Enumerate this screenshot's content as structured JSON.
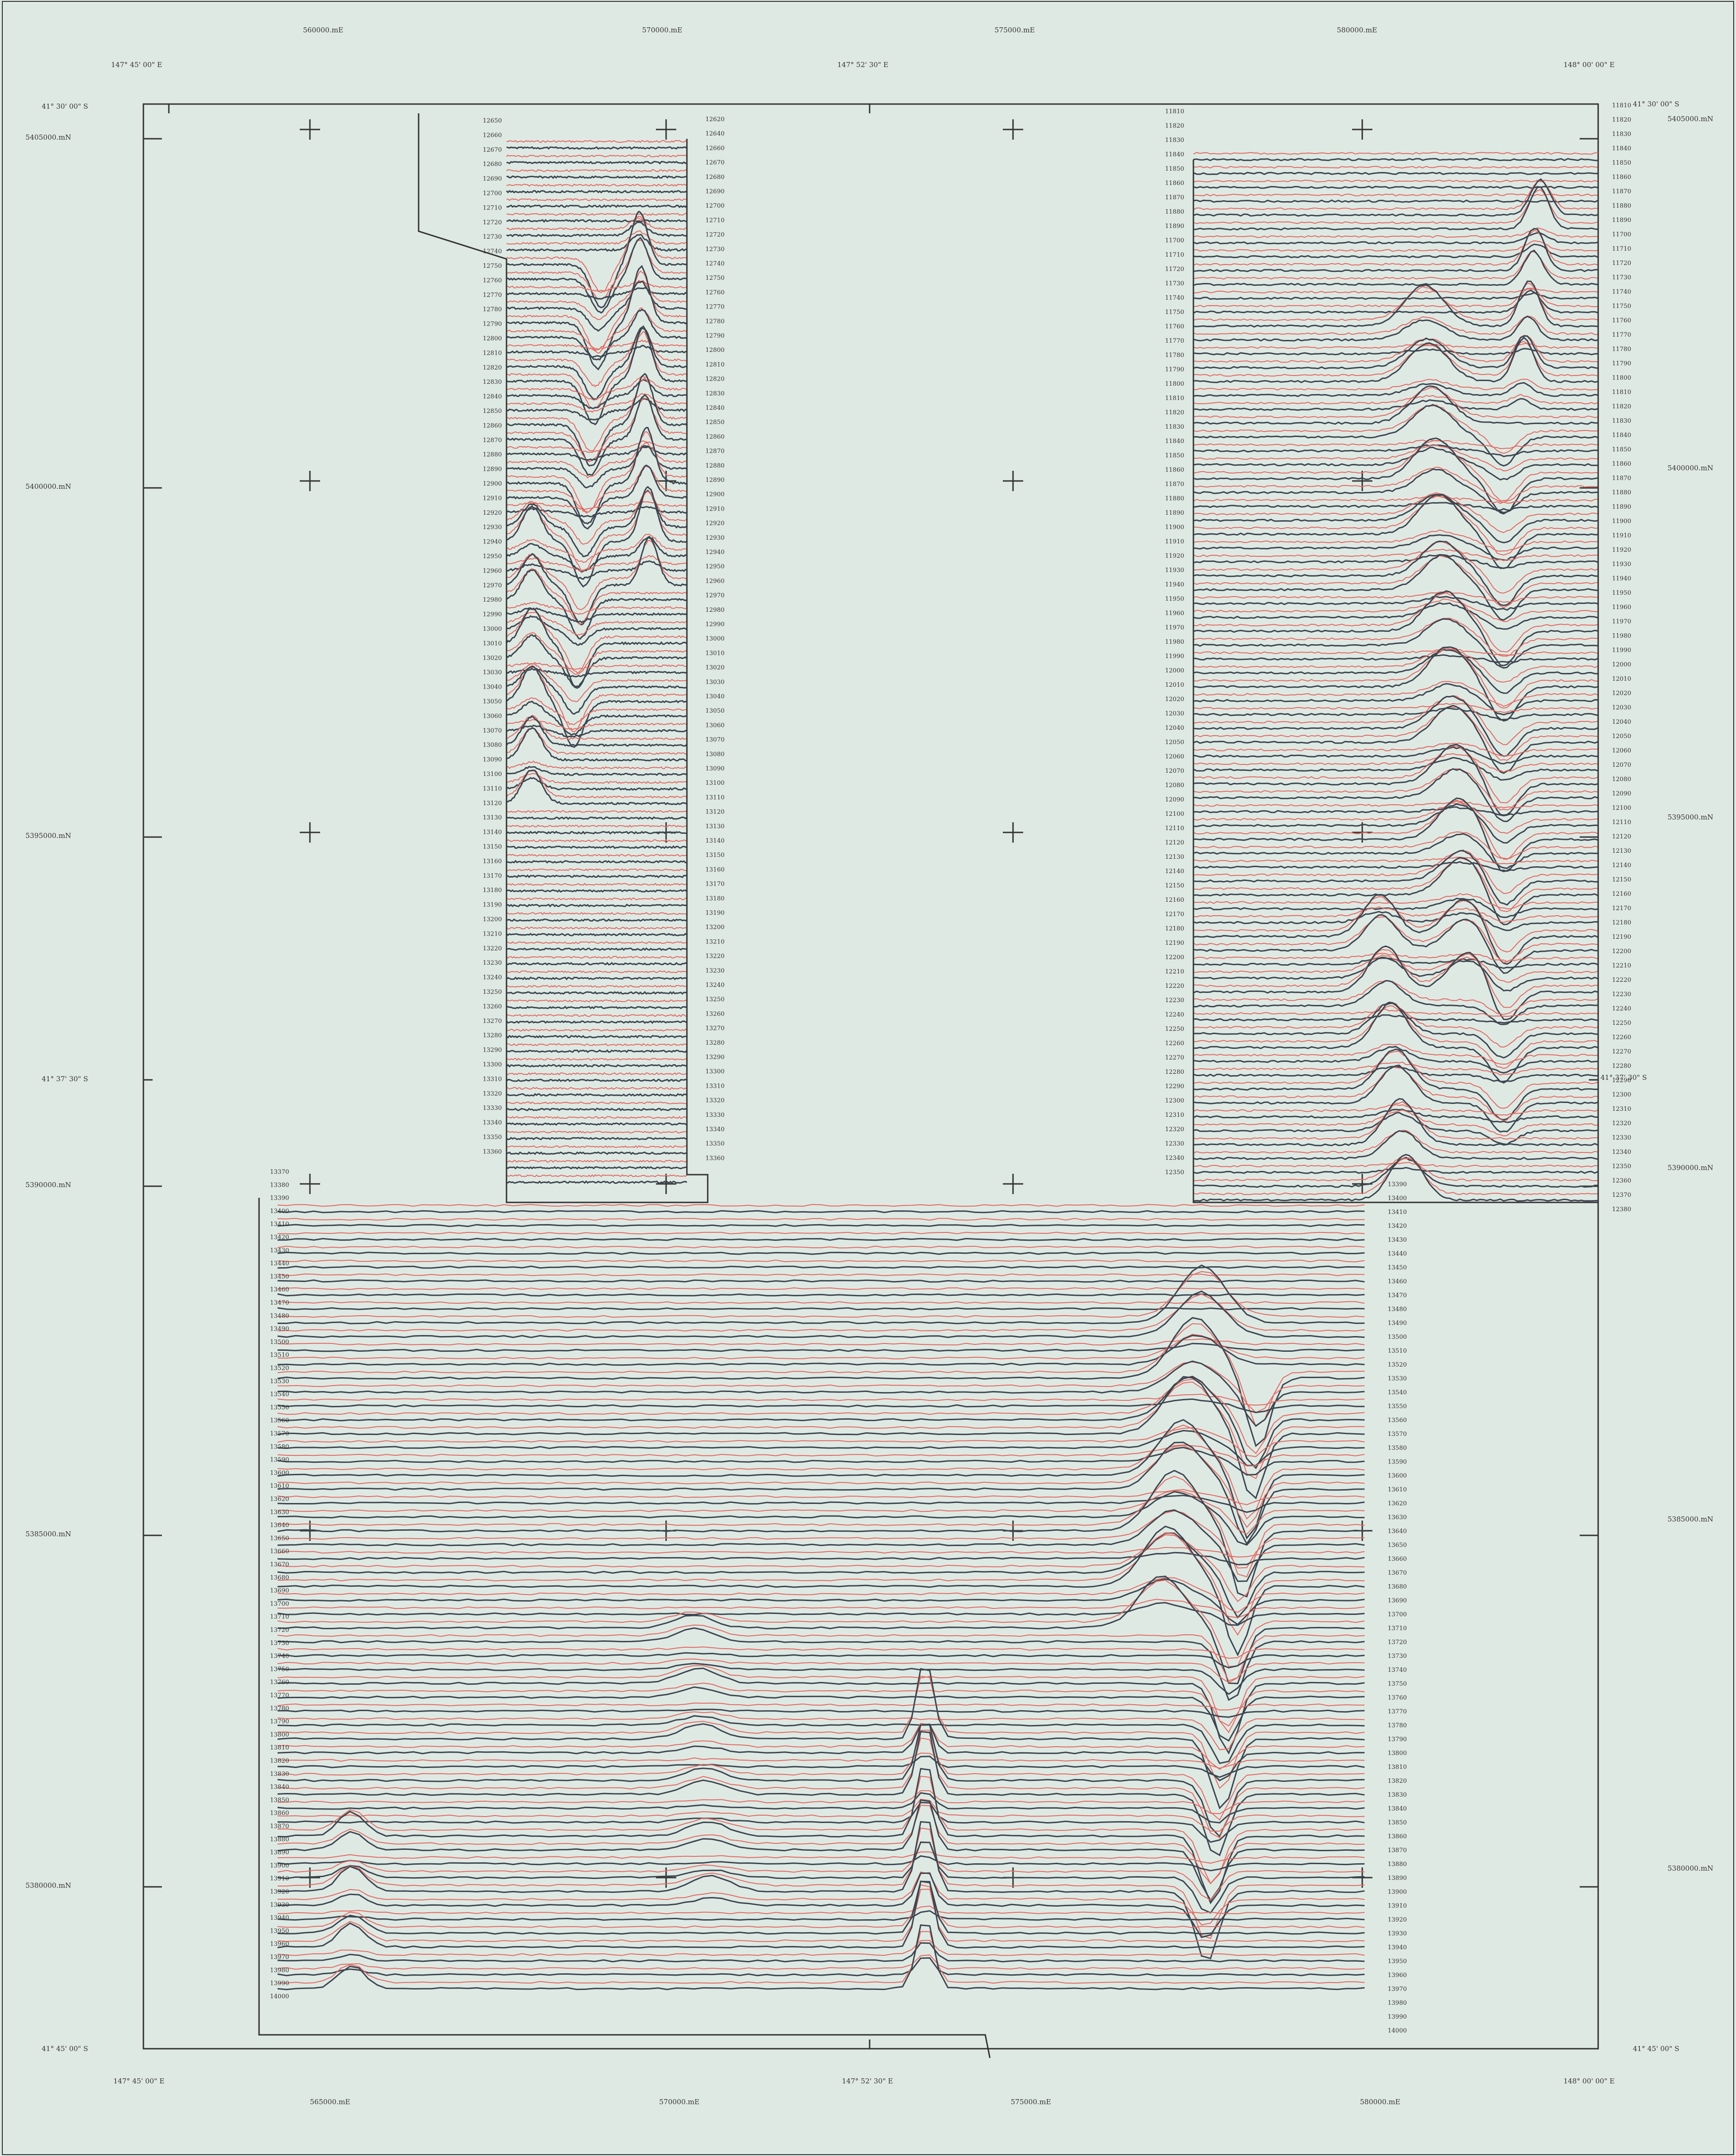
{
  "map": {
    "colors": {
      "background": "#dfe9e4",
      "trace_dark": "#3d4650",
      "trace_red": "#e26a62",
      "frame": "#333333"
    },
    "top_eastings": [
      "560000.mE",
      "570000.mE",
      "575000.mE",
      "580000.mE"
    ],
    "bottom_eastings": [
      "565000.mE",
      "570000.mE",
      "575000.mE",
      "580000.mE"
    ],
    "left_northings": [
      "5405000.mN",
      "5400000.mN",
      "5395000.mN",
      "5390000.mN",
      "5385000.mN",
      "5380000.mN"
    ],
    "right_northings": [
      "5405000.mN",
      "5400000.mN",
      "5395000.mN",
      "5390000.mN",
      "5385000.mN",
      "5380000.mN"
    ],
    "top_longitudes": [
      "147°  45' 00\" E",
      "147°  52' 30\" E",
      "148°  00' 00\" E"
    ],
    "bottom_longitudes": [
      "147°  45' 00\" E",
      "147°  52' 30\" E",
      "148°  00' 00\" E"
    ],
    "left_latitudes": [
      "41°  30' 00\" S",
      "41°  37' 30\" S",
      "41°  45' 00\" S"
    ],
    "right_latitudes": [
      "41°  30' 00\" S",
      "41°  37' 30\" S",
      "41°  45' 00\" S"
    ],
    "flight_lines": {
      "block_a_left": [
        "12650",
        "12660",
        "12670",
        "12680",
        "12690",
        "12700",
        "12710",
        "12720",
        "12730",
        "12740",
        "12750",
        "12760",
        "12770",
        "12780",
        "12790",
        "12800",
        "12810",
        "12820",
        "12830",
        "12840",
        "12850",
        "12860",
        "12870",
        "12880",
        "12890",
        "12900",
        "12910",
        "12920",
        "12930",
        "12940",
        "12950",
        "12960",
        "12970",
        "12980",
        "12990",
        "13000",
        "13010",
        "13020",
        "13030",
        "13040",
        "13050",
        "13060",
        "13070",
        "13080",
        "13090",
        "13100",
        "13110",
        "13120",
        "13130",
        "13140",
        "13150",
        "13160",
        "13170",
        "13180",
        "13190",
        "13200",
        "13210",
        "13220",
        "13230",
        "13240",
        "13250",
        "13260",
        "13270",
        "13280",
        "13290",
        "13300",
        "13310",
        "13320",
        "13330",
        "13340",
        "13350",
        "13360"
      ],
      "block_a_right": [
        "12620",
        "12640",
        "12660",
        "12670",
        "12680",
        "12690",
        "12700",
        "12710",
        "12720",
        "12730",
        "12740",
        "12750",
        "12760",
        "12770",
        "12780",
        "12790",
        "12800",
        "12810",
        "12820",
        "12830",
        "12840",
        "12850",
        "12860",
        "12870",
        "12880",
        "12890",
        "12900",
        "12910",
        "12920",
        "12930",
        "12940",
        "12950",
        "12960",
        "12970",
        "12980",
        "12990",
        "13000",
        "13010",
        "13020",
        "13030",
        "13040",
        "13050",
        "13060",
        "13070",
        "13080",
        "13090",
        "13100",
        "13110",
        "13120",
        "13130",
        "13140",
        "13150",
        "13160",
        "13170",
        "13180",
        "13190",
        "13200",
        "13210",
        "13220",
        "13230",
        "13240",
        "13250",
        "13260",
        "13270",
        "13280",
        "13290",
        "13300",
        "13310",
        "13320",
        "13330",
        "13340",
        "13350",
        "13360"
      ],
      "block_b_left": [
        "11810",
        "11820",
        "11830",
        "11840",
        "11850",
        "11860",
        "11870",
        "11880",
        "11890",
        "11700",
        "11710",
        "11720",
        "11730",
        "11740",
        "11750",
        "11760",
        "11770",
        "11780",
        "11790",
        "11800",
        "11810",
        "11820",
        "11830",
        "11840",
        "11850",
        "11860",
        "11870",
        "11880",
        "11890",
        "11900",
        "11910",
        "11920",
        "11930",
        "11940",
        "11950",
        "11960",
        "11970",
        "11980",
        "11990",
        "12000",
        "12010",
        "12020",
        "12030",
        "12040",
        "12050",
        "12060",
        "12070",
        "12080",
        "12090",
        "12100",
        "12110",
        "12120",
        "12130",
        "12140",
        "12150",
        "12160",
        "12170",
        "12180",
        "12190",
        "12200",
        "12210",
        "12220",
        "12230",
        "12240",
        "12250",
        "12260",
        "12270",
        "12280",
        "12290",
        "12300",
        "12310",
        "12320",
        "12330",
        "12340",
        "12350"
      ],
      "block_b_right": [
        "11810",
        "11820",
        "11830",
        "11840",
        "11850",
        "11860",
        "11870",
        "11880",
        "11890",
        "11700",
        "11710",
        "11720",
        "11730",
        "11740",
        "11750",
        "11760",
        "11770",
        "11780",
        "11790",
        "11800",
        "11810",
        "11820",
        "11830",
        "11840",
        "11850",
        "11860",
        "11870",
        "11880",
        "11890",
        "11900",
        "11910",
        "11920",
        "11930",
        "11940",
        "11950",
        "11960",
        "11970",
        "11980",
        "11990",
        "12000",
        "12010",
        "12020",
        "12030",
        "12040",
        "12050",
        "12060",
        "12070",
        "12080",
        "12090",
        "12100",
        "12110",
        "12120",
        "12130",
        "12140",
        "12150",
        "12160",
        "12170",
        "12180",
        "12190",
        "12200",
        "12210",
        "12220",
        "12230",
        "12240",
        "12250",
        "12260",
        "12270",
        "12280",
        "12290",
        "12300",
        "12310",
        "12320",
        "12330",
        "12340",
        "12350",
        "12360",
        "12370",
        "12380"
      ],
      "block_c_left": [
        "13370",
        "13380",
        "13390",
        "13400",
        "13410",
        "13420",
        "13430",
        "13440",
        "13450",
        "13460",
        "13470",
        "13480",
        "13490",
        "13500",
        "13510",
        "13520",
        "13530",
        "13540",
        "13550",
        "13560",
        "13570",
        "13580",
        "13590",
        "13600",
        "13610",
        "13620",
        "13630",
        "13640",
        "13650",
        "13660",
        "13670",
        "13680",
        "13690",
        "13700",
        "13710",
        "13720",
        "13730",
        "13740",
        "13750",
        "13760",
        "13770",
        "13780",
        "13790",
        "13800",
        "13810",
        "13820",
        "13830",
        "13840",
        "13850",
        "13860",
        "13870",
        "13880",
        "13890",
        "13900",
        "13910",
        "13920",
        "13930",
        "13940",
        "13950",
        "13960",
        "13970",
        "13980",
        "13990",
        "14000"
      ],
      "block_c_right": [
        "13390",
        "13400",
        "13410",
        "13420",
        "13430",
        "13440",
        "13450",
        "13460",
        "13470",
        "13480",
        "13490",
        "13500",
        "13510",
        "13520",
        "13530",
        "13540",
        "13550",
        "13560",
        "13570",
        "13580",
        "13590",
        "13600",
        "13610",
        "13620",
        "13630",
        "13640",
        "13650",
        "13660",
        "13670",
        "13680",
        "13690",
        "13700",
        "13710",
        "13720",
        "13730",
        "13740",
        "13750",
        "13760",
        "13770",
        "13780",
        "13790",
        "13800",
        "13810",
        "13820",
        "13830",
        "13840",
        "13850",
        "13860",
        "13870",
        "13880",
        "13890",
        "13900",
        "13910",
        "13920",
        "13930",
        "13940",
        "13950",
        "13960",
        "13970",
        "13980",
        "13990",
        "14000"
      ]
    }
  }
}
